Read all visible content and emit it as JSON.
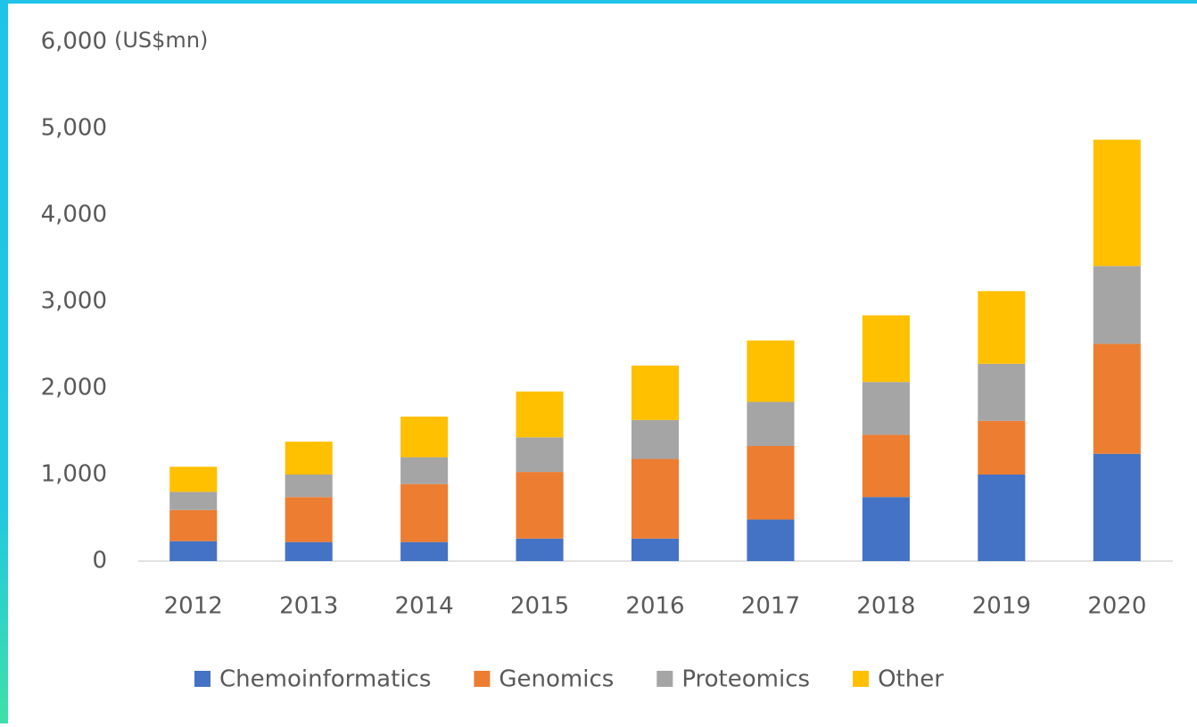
{
  "chart_data": {
    "type": "stacked_bar",
    "y_unit": "(US$mn)",
    "categories": [
      "2012",
      "2013",
      "2014",
      "2015",
      "2016",
      "2017",
      "2018",
      "2019",
      "2020"
    ],
    "series": [
      {
        "name": "Chemoinformatics",
        "color": "#4472c4",
        "values": [
          230,
          220,
          220,
          260,
          260,
          480,
          740,
          1000,
          1240
        ]
      },
      {
        "name": "Genomics",
        "color": "#ed7d31",
        "values": [
          360,
          520,
          670,
          770,
          920,
          850,
          720,
          620,
          1270
        ]
      },
      {
        "name": "Proteomics",
        "color": "#a5a5a5",
        "values": [
          210,
          260,
          310,
          400,
          450,
          510,
          610,
          660,
          900
        ]
      },
      {
        "name": "Other",
        "color": "#ffc000",
        "values": [
          290,
          380,
          470,
          530,
          630,
          710,
          770,
          840,
          1460
        ]
      }
    ],
    "ylim": [
      0,
      6000
    ],
    "yticks": [
      0,
      {
        "value": 1000,
        "label": "1,000"
      },
      {
        "value": 2000,
        "label": "2,000"
      },
      {
        "value": 3000,
        "label": "3,000"
      },
      {
        "value": 4000,
        "label": "4,000"
      },
      {
        "value": 5000,
        "label": "5,000"
      },
      {
        "value": 6000,
        "label": "6,000"
      }
    ],
    "grid": false,
    "legend": "bottom"
  }
}
